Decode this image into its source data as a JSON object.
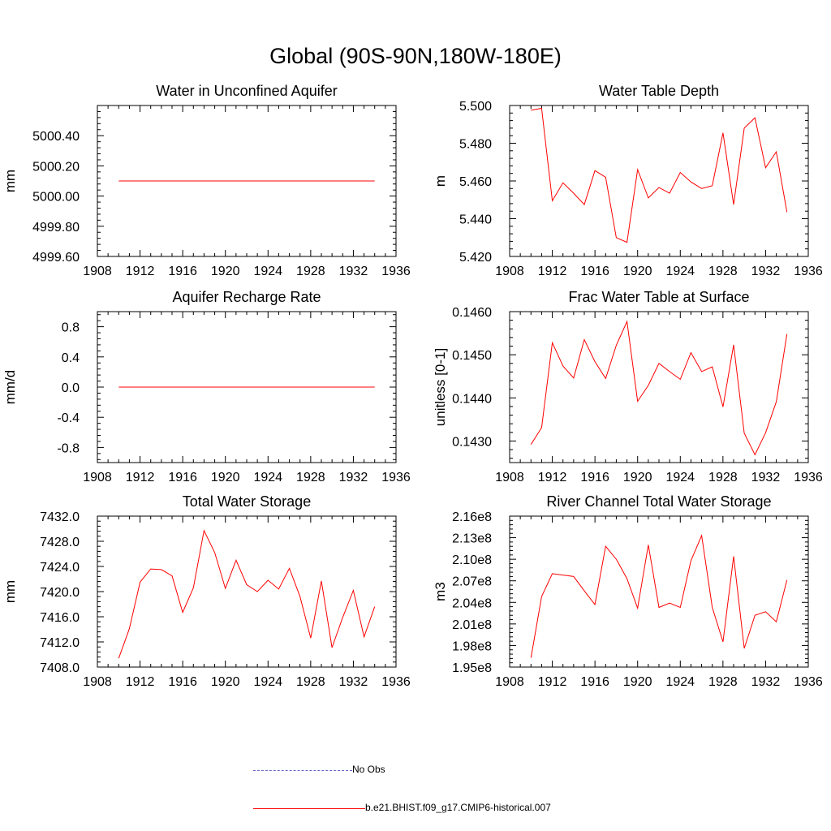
{
  "title": "Global (90S-90N,180W-180E)",
  "colors": {
    "model": "#ff0000",
    "obs": "#6666cc",
    "axis": "#000000"
  },
  "legend": {
    "obs_label": "No Obs",
    "model_label": "b.e21.BHIST.f09_g17.CMIP6-historical.007"
  },
  "chart_data": [
    {
      "type": "line",
      "title": "Water in Unconfined Aquifer",
      "xlabel": "",
      "ylabel": "mm",
      "xlim": [
        1908,
        1936
      ],
      "ylim": [
        4999.6,
        5000.6
      ],
      "xticks": [
        1908,
        1912,
        1916,
        1920,
        1924,
        1928,
        1932,
        1936
      ],
      "yticks": [
        4999.6,
        4999.8,
        5000.0,
        5000.2,
        5000.4
      ],
      "ytick_labels": [
        "4999.60",
        "4999.80",
        "5000.00",
        "5000.20",
        "5000.40"
      ],
      "series": [
        {
          "x": [
            1910,
            1911,
            1912,
            1913,
            1914,
            1915,
            1916,
            1917,
            1918,
            1919,
            1920,
            1921,
            1922,
            1923,
            1924,
            1925,
            1926,
            1927,
            1928,
            1929,
            1930,
            1931,
            1932,
            1933,
            1934
          ],
          "y": [
            5000.1,
            5000.1,
            5000.1,
            5000.1,
            5000.1,
            5000.1,
            5000.1,
            5000.1,
            5000.1,
            5000.1,
            5000.1,
            5000.1,
            5000.1,
            5000.1,
            5000.1,
            5000.1,
            5000.1,
            5000.1,
            5000.1,
            5000.1,
            5000.1,
            5000.1,
            5000.1,
            5000.1,
            5000.1
          ]
        }
      ]
    },
    {
      "type": "line",
      "title": "Water Table Depth",
      "xlabel": "",
      "ylabel": "m",
      "xlim": [
        1908,
        1936
      ],
      "ylim": [
        5.42,
        5.5
      ],
      "xticks": [
        1908,
        1912,
        1916,
        1920,
        1924,
        1928,
        1932,
        1936
      ],
      "yticks": [
        5.42,
        5.44,
        5.46,
        5.48,
        5.5
      ],
      "ytick_labels": [
        "5.420",
        "5.440",
        "5.460",
        "5.480",
        "5.500"
      ],
      "series": [
        {
          "x": [
            1910,
            1911,
            1912,
            1913,
            1914,
            1915,
            1916,
            1917,
            1918,
            1919,
            1920,
            1921,
            1922,
            1923,
            1924,
            1925,
            1926,
            1927,
            1928,
            1929,
            1930,
            1931,
            1932,
            1933,
            1934
          ],
          "y": [
            5.4975,
            5.4985,
            5.4495,
            5.459,
            5.4535,
            5.4475,
            5.4655,
            5.462,
            5.43,
            5.4275,
            5.466,
            5.451,
            5.4565,
            5.4535,
            5.4645,
            5.4595,
            5.456,
            5.4575,
            5.4855,
            5.4475,
            5.488,
            5.4935,
            5.467,
            5.4755,
            5.4435
          ]
        }
      ]
    },
    {
      "type": "line",
      "title": "Aquifer Recharge Rate",
      "xlabel": "",
      "ylabel": "mm/d",
      "xlim": [
        1908,
        1936
      ],
      "ylim": [
        -1.0,
        1.0
      ],
      "xticks": [
        1908,
        1912,
        1916,
        1920,
        1924,
        1928,
        1932,
        1936
      ],
      "yticks": [
        -0.8,
        -0.4,
        0.0,
        0.4,
        0.8
      ],
      "ytick_labels": [
        "-0.8",
        "-0.4",
        "0.0",
        "0.4",
        "0.8"
      ],
      "series": [
        {
          "x": [
            1910,
            1911,
            1912,
            1913,
            1914,
            1915,
            1916,
            1917,
            1918,
            1919,
            1920,
            1921,
            1922,
            1923,
            1924,
            1925,
            1926,
            1927,
            1928,
            1929,
            1930,
            1931,
            1932,
            1933,
            1934
          ],
          "y": [
            0,
            0,
            0,
            0,
            0,
            0,
            0,
            0,
            0,
            0,
            0,
            0,
            0,
            0,
            0,
            0,
            0,
            0,
            0,
            0,
            0,
            0,
            0,
            0,
            0
          ]
        }
      ]
    },
    {
      "type": "line",
      "title": "Frac Water Table at Surface",
      "xlabel": "",
      "ylabel": "unitless [0-1]",
      "xlim": [
        1908,
        1936
      ],
      "ylim": [
        0.1425,
        0.146
      ],
      "xticks": [
        1908,
        1912,
        1916,
        1920,
        1924,
        1928,
        1932,
        1936
      ],
      "yticks": [
        0.143,
        0.144,
        0.145,
        0.146
      ],
      "ytick_labels": [
        "0.1430",
        "0.1440",
        "0.1450",
        "0.1460"
      ],
      "series": [
        {
          "x": [
            1910,
            1911,
            1912,
            1913,
            1914,
            1915,
            1916,
            1917,
            1918,
            1919,
            1920,
            1921,
            1922,
            1923,
            1924,
            1925,
            1926,
            1927,
            1928,
            1929,
            1930,
            1931,
            1932,
            1933,
            1934
          ],
          "y": [
            0.14292,
            0.14331,
            0.14528,
            0.14474,
            0.14446,
            0.14535,
            0.14484,
            0.14445,
            0.14522,
            0.14577,
            0.14392,
            0.14429,
            0.1448,
            0.14461,
            0.14443,
            0.14505,
            0.14461,
            0.14472,
            0.14379,
            0.14523,
            0.14318,
            0.14268,
            0.14319,
            0.14391,
            0.14548
          ]
        }
      ]
    },
    {
      "type": "line",
      "title": "Total Water Storage",
      "xlabel": "",
      "ylabel": "mm",
      "xlim": [
        1908,
        1936
      ],
      "ylim": [
        7408.0,
        7432.0
      ],
      "xticks": [
        1908,
        1912,
        1916,
        1920,
        1924,
        1928,
        1932,
        1936
      ],
      "yticks": [
        7408,
        7412,
        7416,
        7420,
        7424,
        7428,
        7432
      ],
      "ytick_labels": [
        "7408.0",
        "7412.0",
        "7416.0",
        "7420.0",
        "7424.0",
        "7428.0",
        "7432.0"
      ],
      "series": [
        {
          "x": [
            1910,
            1911,
            1912,
            1913,
            1914,
            1915,
            1916,
            1917,
            1918,
            1919,
            1920,
            1921,
            1922,
            1923,
            1924,
            1925,
            1926,
            1927,
            1928,
            1929,
            1930,
            1931,
            1932,
            1933,
            1934
          ],
          "y": [
            7409.4,
            7414.1,
            7421.5,
            7423.6,
            7423.5,
            7422.5,
            7416.7,
            7420.6,
            7429.7,
            7426.2,
            7420.5,
            7425.0,
            7421.1,
            7420.0,
            7421.8,
            7420.4,
            7423.7,
            7419.2,
            7412.6,
            7421.7,
            7411.1,
            7415.9,
            7420.2,
            7412.8,
            7417.6
          ]
        }
      ]
    },
    {
      "type": "line",
      "title": "River Channel Total Water Storage",
      "xlabel": "",
      "ylabel": "m3",
      "xlim": [
        1908,
        1936
      ],
      "ylim": [
        195000000.0,
        216000000.0
      ],
      "xticks": [
        1908,
        1912,
        1916,
        1920,
        1924,
        1928,
        1932,
        1936
      ],
      "yticks": [
        195000000.0,
        198000000.0,
        201000000.0,
        204000000.0,
        207000000.0,
        210000000.0,
        213000000.0,
        216000000.0
      ],
      "ytick_labels": [
        "1.95e8",
        "1.98e8",
        "2.01e8",
        "2.04e8",
        "2.07e8",
        "2.10e8",
        "2.13e8",
        "2.16e8"
      ],
      "series": [
        {
          "x": [
            1910,
            1911,
            1912,
            1913,
            1914,
            1915,
            1916,
            1917,
            1918,
            1919,
            1920,
            1921,
            1922,
            1923,
            1924,
            1925,
            1926,
            1927,
            1928,
            1929,
            1930,
            1931,
            1932,
            1933,
            1934
          ],
          "y": [
            196300000.0,
            204800000.0,
            208000000.0,
            207800000.0,
            207600000.0,
            205600000.0,
            203700000.0,
            211800000.0,
            210000000.0,
            207300000.0,
            203200000.0,
            212000000.0,
            203300000.0,
            203900000.0,
            203300000.0,
            209800000.0,
            213300000.0,
            203300000.0,
            198500000.0,
            210400000.0,
            197600000.0,
            202200000.0,
            202700000.0,
            201300000.0,
            207100000.0
          ]
        }
      ]
    }
  ]
}
